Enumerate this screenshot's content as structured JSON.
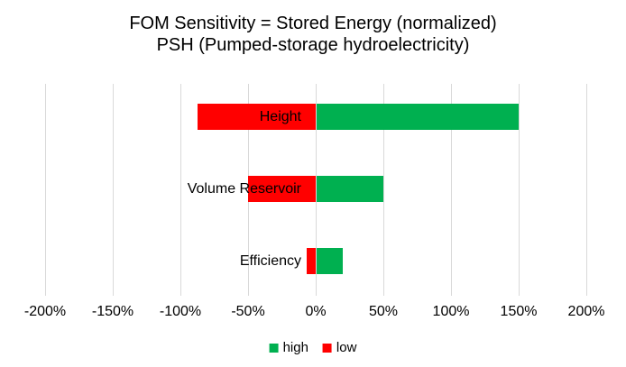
{
  "chart_data": {
    "type": "bar",
    "variant": "tornado",
    "orientation": "horizontal",
    "title": "FOM Sensitivity = Stored Energy (normalized)",
    "subtitle": "PSH (Pumped-storage hydroelectricity)",
    "categories": [
      "Height",
      "Volume Reservoir",
      "Efficiency"
    ],
    "series": [
      {
        "name": "high",
        "color": "#00B050",
        "values": [
          150,
          50,
          20
        ]
      },
      {
        "name": "low",
        "color": "#FF0000",
        "values": [
          -87.5,
          -50,
          -6.7
        ]
      }
    ],
    "unit": "%",
    "xlim": [
      -200,
      200
    ],
    "xticks": [
      {
        "label": "-200%",
        "value": -200
      },
      {
        "label": "-150%",
        "value": -150
      },
      {
        "label": "-100%",
        "value": -100
      },
      {
        "label": "-50%",
        "value": -50
      },
      {
        "label": "0%",
        "value": 0
      },
      {
        "label": "50%",
        "value": 50
      },
      {
        "label": "100%",
        "value": 100
      },
      {
        "label": "150%",
        "value": 150
      },
      {
        "label": "200%",
        "value": 200
      }
    ],
    "grid": "vertical-only",
    "legend_position": "bottom"
  },
  "colors": {
    "gridline": "#D9D9D9",
    "text": "#000000",
    "background": "#FFFFFF"
  }
}
